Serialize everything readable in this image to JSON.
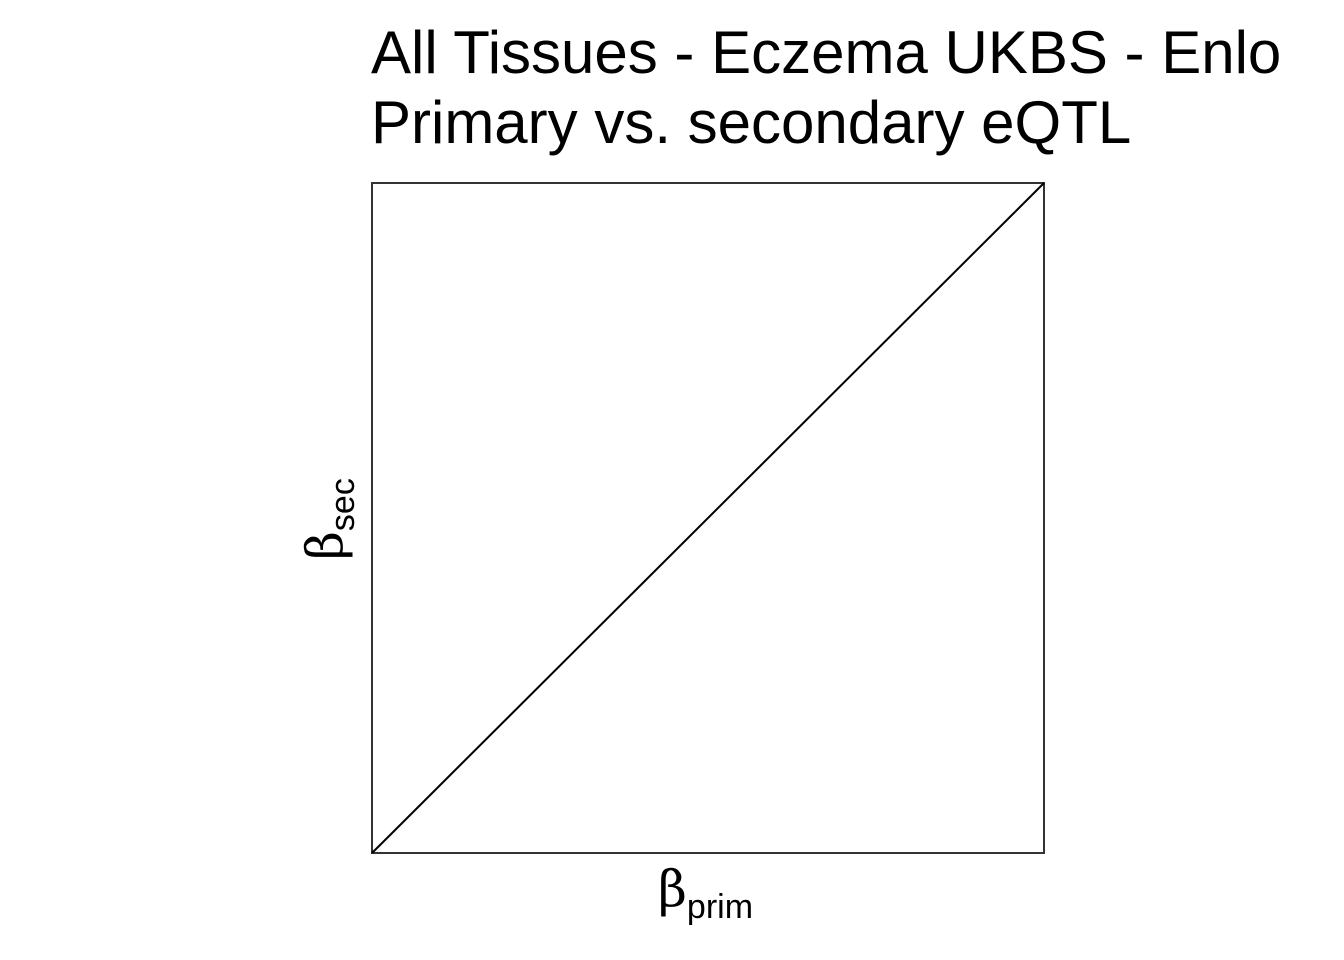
{
  "chart_data": {
    "type": "scatter",
    "title": "All Tissues - Eczema UKBS - Enlo",
    "subtitle": "Primary vs. secondary eQTL",
    "xlabel": {
      "symbol": "β",
      "subscript": "prim"
    },
    "ylabel": {
      "symbol": "β",
      "subscript": "sec"
    },
    "xlim": [
      0,
      1
    ],
    "ylim": [
      0,
      1
    ],
    "series": [],
    "reference_line": {
      "type": "identity",
      "x": [
        0,
        1
      ],
      "y": [
        0,
        1
      ]
    },
    "grid": false,
    "axis_ticks": false,
    "frame_color": "#333333",
    "line_color": "#000000"
  }
}
